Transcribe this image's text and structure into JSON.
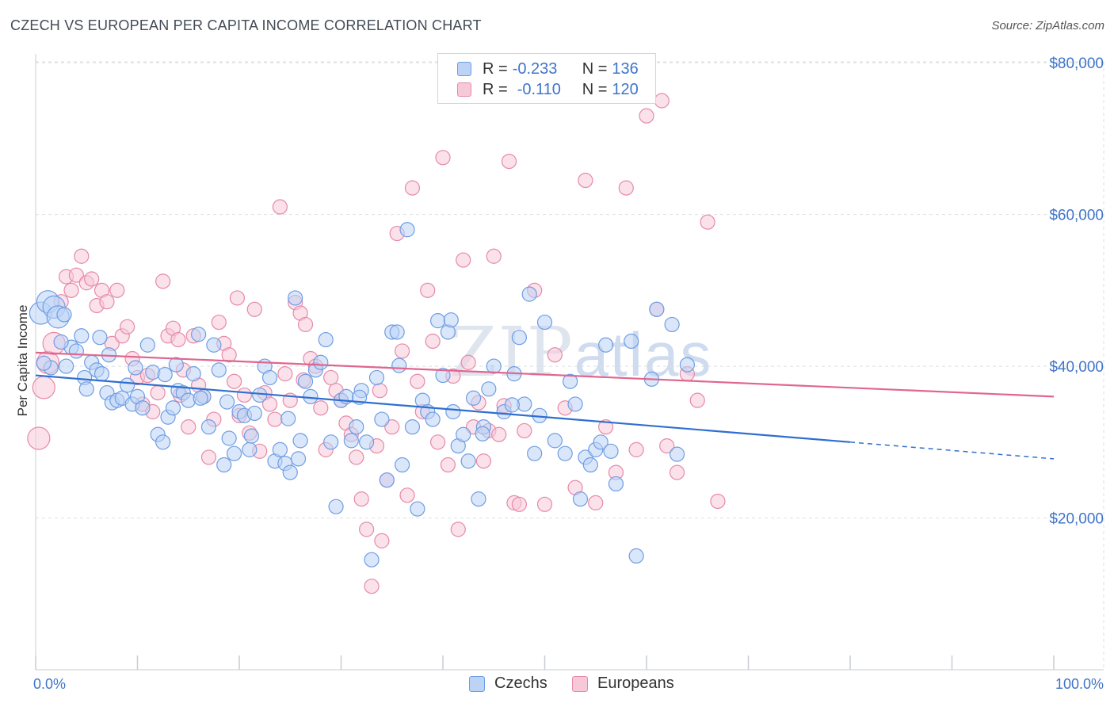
{
  "title": "CZECH VS EUROPEAN PER CAPITA INCOME CORRELATION CHART",
  "source": "Source: ZipAtlas.com",
  "watermark": {
    "zip": "ZIP",
    "atlas": "atlas"
  },
  "legend": {
    "r_label": "R =",
    "n_label": "N =",
    "items": [
      {
        "r": "-0.233",
        "n": "136",
        "color": "#6f9de3",
        "fill": "#bcd3f5"
      },
      {
        "r": "-0.110",
        "n": "120",
        "color": "#e68aa8",
        "fill": "#f7c8d8"
      }
    ]
  },
  "bottom_legend": {
    "czechs": "Czechs",
    "europeans": "Europeans"
  },
  "chart_data": {
    "type": "scatter",
    "title": "CZECH VS EUROPEAN PER CAPITA INCOME CORRELATION CHART",
    "xlabel": "",
    "ylabel": "Per Capita Income",
    "x_tick_labels": [
      "0.0%",
      "100.0%"
    ],
    "y_tick_labels": [
      "$20,000",
      "$40,000",
      "$60,000",
      "$80,000"
    ],
    "y_ticks": [
      20000,
      40000,
      60000,
      80000
    ],
    "xlim": [
      0,
      100
    ],
    "ylim": [
      0,
      82000
    ],
    "grid": true,
    "series": [
      {
        "name": "Czechs",
        "color": "#6f9de3",
        "trend": {
          "x0": 0,
          "y0": 38800,
          "x1": 80,
          "y1": 30000,
          "dashed_to": 100,
          "dashed_y": 27800
        },
        "points": [
          [
            0.5,
            47000
          ],
          [
            1.2,
            48500
          ],
          [
            1.8,
            47800
          ],
          [
            2.2,
            46500
          ],
          [
            2.8,
            46800
          ],
          [
            3.5,
            42500
          ],
          [
            4.0,
            42000
          ],
          [
            4.5,
            44000
          ],
          [
            4.8,
            38500
          ],
          [
            5.0,
            37000
          ],
          [
            5.5,
            40500
          ],
          [
            6.0,
            39500
          ],
          [
            6.5,
            39000
          ],
          [
            7.0,
            36500
          ],
          [
            7.5,
            35200
          ],
          [
            8.0,
            35500
          ],
          [
            8.5,
            35800
          ],
          [
            9.0,
            37500
          ],
          [
            9.5,
            35000
          ],
          [
            10.0,
            36000
          ],
          [
            10.5,
            34500
          ],
          [
            11.0,
            42800
          ],
          [
            11.5,
            39200
          ],
          [
            12.0,
            31000
          ],
          [
            12.5,
            30000
          ],
          [
            13.0,
            33300
          ],
          [
            13.5,
            34500
          ],
          [
            14.0,
            36800
          ],
          [
            14.5,
            36500
          ],
          [
            15.0,
            35500
          ],
          [
            15.5,
            39000
          ],
          [
            16.0,
            44200
          ],
          [
            16.5,
            36000
          ],
          [
            17.0,
            32000
          ],
          [
            17.5,
            42800
          ],
          [
            18.0,
            39500
          ],
          [
            18.5,
            27000
          ],
          [
            19.0,
            30500
          ],
          [
            19.5,
            28500
          ],
          [
            20.0,
            34000
          ],
          [
            20.5,
            33500
          ],
          [
            21.0,
            29000
          ],
          [
            21.5,
            33800
          ],
          [
            22.0,
            36200
          ],
          [
            22.5,
            40000
          ],
          [
            23.0,
            38500
          ],
          [
            23.5,
            27500
          ],
          [
            24.0,
            29000
          ],
          [
            24.5,
            27200
          ],
          [
            25.0,
            26000
          ],
          [
            25.5,
            49000
          ],
          [
            26.0,
            30200
          ],
          [
            26.5,
            38000
          ],
          [
            27.0,
            36000
          ],
          [
            27.5,
            39500
          ],
          [
            28.0,
            40500
          ],
          [
            28.5,
            43500
          ],
          [
            29.0,
            30000
          ],
          [
            29.5,
            21500
          ],
          [
            30.0,
            35500
          ],
          [
            30.5,
            36000
          ],
          [
            31.0,
            30200
          ],
          [
            31.5,
            32000
          ],
          [
            32.0,
            36800
          ],
          [
            32.5,
            30000
          ],
          [
            33.0,
            14500
          ],
          [
            33.5,
            38500
          ],
          [
            34.0,
            33000
          ],
          [
            34.5,
            25000
          ],
          [
            35.0,
            44500
          ],
          [
            35.5,
            44500
          ],
          [
            36.0,
            27000
          ],
          [
            36.5,
            58000
          ],
          [
            37.0,
            32000
          ],
          [
            37.5,
            21200
          ],
          [
            38.0,
            35500
          ],
          [
            38.5,
            34000
          ],
          [
            39.0,
            33000
          ],
          [
            39.5,
            46000
          ],
          [
            40.0,
            38800
          ],
          [
            40.5,
            44500
          ],
          [
            41.0,
            34000
          ],
          [
            41.5,
            29500
          ],
          [
            42.0,
            31000
          ],
          [
            42.5,
            27500
          ],
          [
            43.0,
            35800
          ],
          [
            43.5,
            22500
          ],
          [
            44.0,
            32000
          ],
          [
            44.5,
            37000
          ],
          [
            45.0,
            40000
          ],
          [
            46.0,
            34000
          ],
          [
            47.0,
            39000
          ],
          [
            47.5,
            43800
          ],
          [
            48.0,
            35000
          ],
          [
            48.5,
            49500
          ],
          [
            49.0,
            28500
          ],
          [
            49.5,
            33500
          ],
          [
            50.0,
            45800
          ],
          [
            51.0,
            30200
          ],
          [
            52.0,
            28500
          ],
          [
            52.5,
            38000
          ],
          [
            53.0,
            35000
          ],
          [
            53.5,
            22500
          ],
          [
            54.0,
            28000
          ],
          [
            54.5,
            27000
          ],
          [
            55.0,
            29000
          ],
          [
            55.5,
            30000
          ],
          [
            56.0,
            42800
          ],
          [
            56.5,
            28800
          ],
          [
            57.0,
            24500
          ],
          [
            58.5,
            43300
          ],
          [
            59.0,
            15000
          ],
          [
            60.5,
            38300
          ],
          [
            61.0,
            47500
          ],
          [
            62.5,
            45500
          ],
          [
            63.0,
            28400
          ],
          [
            64.0,
            40200
          ],
          [
            16.2,
            35800
          ],
          [
            12.7,
            38900
          ],
          [
            9.8,
            39800
          ],
          [
            21.2,
            30800
          ],
          [
            25.8,
            27800
          ],
          [
            31.8,
            35900
          ],
          [
            35.7,
            40100
          ],
          [
            40.8,
            46100
          ],
          [
            43.9,
            31100
          ],
          [
            46.8,
            34900
          ],
          [
            7.2,
            41500
          ],
          [
            3.0,
            40000
          ],
          [
            2.5,
            43200
          ],
          [
            1.5,
            39800
          ],
          [
            0.8,
            40400
          ],
          [
            6.3,
            43800
          ],
          [
            13.8,
            40200
          ],
          [
            18.8,
            35300
          ],
          [
            24.8,
            33100
          ]
        ]
      },
      {
        "name": "Europeans",
        "color": "#e68aa8",
        "trend": {
          "x0": 0,
          "y0": 41800,
          "x1": 100,
          "y1": 36000
        },
        "points": [
          [
            0.3,
            30500
          ],
          [
            0.8,
            37200
          ],
          [
            1.2,
            40500
          ],
          [
            1.8,
            43000
          ],
          [
            2.5,
            48500
          ],
          [
            3.0,
            51800
          ],
          [
            3.5,
            50000
          ],
          [
            4.0,
            52000
          ],
          [
            4.5,
            54500
          ],
          [
            5.0,
            51000
          ],
          [
            5.5,
            51500
          ],
          [
            6.0,
            48000
          ],
          [
            6.5,
            50000
          ],
          [
            7.0,
            48500
          ],
          [
            7.5,
            43000
          ],
          [
            8.0,
            50000
          ],
          [
            8.5,
            44000
          ],
          [
            9.0,
            45200
          ],
          [
            9.5,
            41000
          ],
          [
            10.0,
            38500
          ],
          [
            10.5,
            35000
          ],
          [
            11.0,
            38800
          ],
          [
            11.5,
            34000
          ],
          [
            12.0,
            36500
          ],
          [
            12.5,
            51200
          ],
          [
            13.0,
            44000
          ],
          [
            13.5,
            45000
          ],
          [
            14.0,
            43500
          ],
          [
            14.5,
            39500
          ],
          [
            15.0,
            32000
          ],
          [
            15.5,
            44000
          ],
          [
            16.0,
            37500
          ],
          [
            16.5,
            36000
          ],
          [
            17.0,
            28000
          ],
          [
            17.5,
            33000
          ],
          [
            18.0,
            45800
          ],
          [
            18.5,
            43000
          ],
          [
            19.0,
            41500
          ],
          [
            19.5,
            38000
          ],
          [
            20.0,
            33500
          ],
          [
            20.5,
            36200
          ],
          [
            21.0,
            31200
          ],
          [
            21.5,
            47500
          ],
          [
            22.0,
            28800
          ],
          [
            22.5,
            36500
          ],
          [
            23.0,
            35000
          ],
          [
            23.5,
            33000
          ],
          [
            24.0,
            61000
          ],
          [
            24.5,
            39000
          ],
          [
            25.0,
            35500
          ],
          [
            25.5,
            48400
          ],
          [
            26.0,
            47000
          ],
          [
            26.5,
            45500
          ],
          [
            27.0,
            41000
          ],
          [
            27.5,
            40000
          ],
          [
            28.0,
            34500
          ],
          [
            28.5,
            29000
          ],
          [
            29.0,
            38500
          ],
          [
            29.5,
            36800
          ],
          [
            30.0,
            35500
          ],
          [
            30.5,
            32500
          ],
          [
            31.0,
            31000
          ],
          [
            31.5,
            28000
          ],
          [
            32.0,
            22500
          ],
          [
            32.5,
            18500
          ],
          [
            33.0,
            11000
          ],
          [
            33.5,
            29500
          ],
          [
            34.0,
            17000
          ],
          [
            34.5,
            25000
          ],
          [
            35.0,
            32000
          ],
          [
            35.5,
            57500
          ],
          [
            36.0,
            42000
          ],
          [
            36.5,
            23000
          ],
          [
            37.0,
            63500
          ],
          [
            37.5,
            38000
          ],
          [
            38.0,
            34000
          ],
          [
            38.5,
            50000
          ],
          [
            39.0,
            43300
          ],
          [
            39.5,
            30000
          ],
          [
            40.0,
            67500
          ],
          [
            40.5,
            27000
          ],
          [
            41.0,
            38700
          ],
          [
            41.5,
            18500
          ],
          [
            42.0,
            54000
          ],
          [
            42.5,
            40500
          ],
          [
            43.0,
            32000
          ],
          [
            43.5,
            35200
          ],
          [
            44.0,
            27500
          ],
          [
            44.5,
            31500
          ],
          [
            45.0,
            54500
          ],
          [
            45.5,
            31000
          ],
          [
            46.0,
            34800
          ],
          [
            46.5,
            67000
          ],
          [
            47.0,
            22000
          ],
          [
            47.5,
            21800
          ],
          [
            48.0,
            31500
          ],
          [
            49.0,
            50000
          ],
          [
            50.0,
            21800
          ],
          [
            51.0,
            41500
          ],
          [
            52.0,
            34500
          ],
          [
            53.0,
            24000
          ],
          [
            54.0,
            64500
          ],
          [
            55.0,
            22000
          ],
          [
            56.0,
            32000
          ],
          [
            57.0,
            26000
          ],
          [
            58.0,
            63500
          ],
          [
            59.0,
            29000
          ],
          [
            60.0,
            73000
          ],
          [
            61.0,
            47500
          ],
          [
            61.5,
            75000
          ],
          [
            62.0,
            29500
          ],
          [
            63.0,
            26000
          ],
          [
            64.0,
            39000
          ],
          [
            65.0,
            35500
          ],
          [
            66.0,
            59000
          ],
          [
            67.0,
            22200
          ],
          [
            14.2,
            36200
          ],
          [
            19.8,
            49000
          ],
          [
            26.3,
            38200
          ],
          [
            33.8,
            36800
          ]
        ]
      }
    ]
  }
}
